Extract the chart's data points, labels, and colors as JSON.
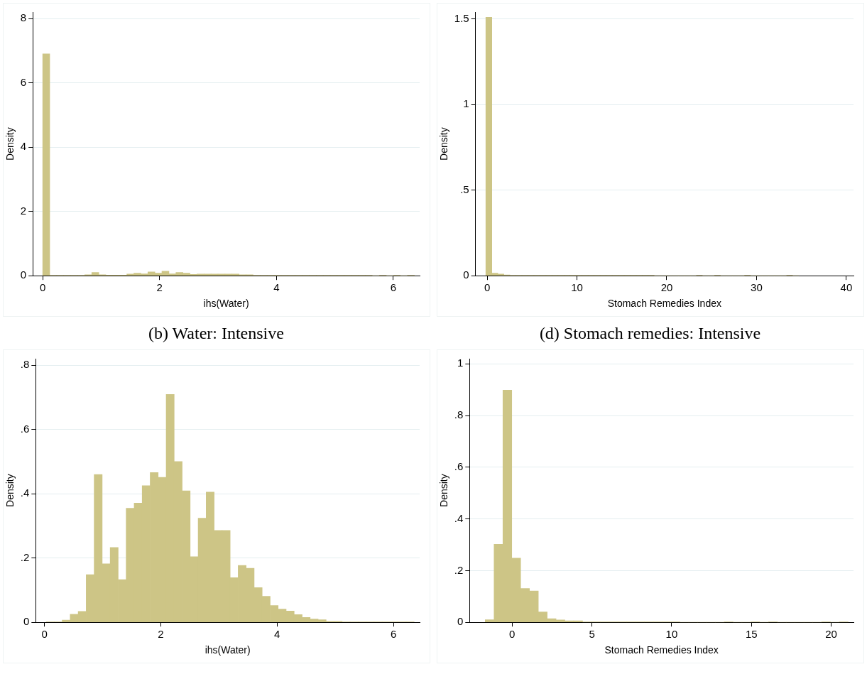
{
  "chart_data": [
    {
      "type": "histogram",
      "xlabel": "ihs(Water)",
      "ylabel": "Density",
      "color": "#cdc586",
      "grid": "y",
      "bins": [
        0,
        0.12,
        0.24,
        0.36,
        0.48,
        0.6,
        0.72,
        0.84,
        0.96,
        1.08,
        1.2,
        1.32,
        1.44,
        1.56,
        1.68,
        1.8,
        1.92,
        2.04,
        2.16,
        2.28,
        2.4,
        2.52,
        2.64,
        2.76,
        2.88,
        3,
        3.12,
        3.24,
        3.36,
        3.48,
        3.6,
        3.72,
        3.84,
        3.96,
        4.08,
        4.2,
        4.32,
        4.44,
        4.56,
        4.68,
        4.8,
        4.92,
        5.04,
        5.16,
        5.28,
        5.4,
        5.52,
        5.64,
        5.76,
        5.88,
        6,
        6.12,
        6.24,
        6.36
      ],
      "values": [
        6.9,
        0.01,
        0.01,
        0.01,
        0.01,
        0.01,
        0.03,
        0.1,
        0.03,
        0.02,
        0.02,
        0.02,
        0.05,
        0.08,
        0.06,
        0.12,
        0.08,
        0.14,
        0.06,
        0.1,
        0.08,
        0.04,
        0.05,
        0.05,
        0.05,
        0.05,
        0.05,
        0.05,
        0.03,
        0.03,
        0.01,
        0.01,
        0.01,
        0.01,
        0.01,
        0.01,
        0.01,
        0.01,
        0.01,
        0.01,
        0.01,
        0.01,
        0.01,
        0.01,
        0.01,
        0.01,
        0.01,
        0,
        0.01,
        0,
        0.01,
        0,
        0.01
      ],
      "xlim": [
        -0.17,
        6.45
      ],
      "ylim": [
        0,
        8.2
      ],
      "xticks": [
        0,
        2,
        4,
        6
      ],
      "yticks": [
        0,
        2,
        4,
        6,
        8
      ]
    },
    {
      "type": "histogram",
      "xlabel": "Stomach Remedies Index",
      "ylabel": "Density",
      "color": "#cdc586",
      "grid": "y",
      "bins": [
        -0.15,
        0.52,
        1.19,
        1.86,
        2.53,
        3.2,
        3.87,
        4.54,
        5.21,
        5.88,
        6.55,
        7.22,
        7.89,
        8.56,
        9.23,
        9.9,
        10.57,
        11.24,
        11.91,
        12.58,
        13.25,
        13.92,
        14.59,
        15.26,
        15.93,
        16.6,
        17.27,
        17.94,
        18.61,
        19.28,
        19.95,
        20.62,
        21.29,
        21.96,
        22.63,
        23.3,
        23.97,
        24.64,
        25.31,
        25.98,
        26.65,
        27.32,
        27.99,
        28.66,
        29.33,
        30,
        30.67,
        31.34,
        32.01,
        32.68,
        33.35,
        34.02,
        34.69
      ],
      "values": [
        1.51,
        0.015,
        0.01,
        0.005,
        0.002,
        0.002,
        0.002,
        0.002,
        0.002,
        0.002,
        0.002,
        0.002,
        0.002,
        0.002,
        0.002,
        0.002,
        0.002,
        0.002,
        0.002,
        0.002,
        0.002,
        0.002,
        0.002,
        0.002,
        0.002,
        0.002,
        0.002,
        0.002,
        0,
        0,
        0,
        0,
        0,
        0,
        0,
        0.002,
        0,
        0,
        0.002,
        0,
        0,
        0,
        0,
        0.002,
        0,
        0,
        0,
        0,
        0,
        0,
        0.002,
        0
      ],
      "xlim": [
        -1.3,
        40.8
      ],
      "ylim": [
        0,
        1.54
      ],
      "xticks": [
        0,
        10,
        20,
        30,
        40
      ],
      "yticks": [
        0,
        {
          "value": 0.5,
          "label": ".5"
        },
        1,
        1.5
      ]
    },
    {
      "type": "histogram",
      "title": "(b) Water: Intensive",
      "xlabel": "ihs(Water)",
      "ylabel": "Density",
      "color": "#cdc586",
      "grid": "y",
      "bins": [
        0.03,
        0.1675,
        0.305,
        0.4425,
        0.58,
        0.7175,
        0.855,
        0.9925,
        1.13,
        1.2675,
        1.405,
        1.5425,
        1.68,
        1.8175,
        1.955,
        2.0925,
        2.23,
        2.3675,
        2.505,
        2.6425,
        2.78,
        2.9175,
        3.055,
        3.1925,
        3.33,
        3.4675,
        3.605,
        3.7425,
        3.88,
        4.0175,
        4.155,
        4.2925,
        4.43,
        4.5675,
        4.705,
        4.8425,
        4.98,
        5.1175,
        5.255,
        5.3925,
        5.53,
        5.6675,
        5.805,
        5.9425,
        6.08,
        6.2175,
        6.355
      ],
      "values": [
        0.001,
        0.001,
        0.007,
        0.025,
        0.034,
        0.148,
        0.46,
        0.182,
        0.233,
        0.133,
        0.355,
        0.371,
        0.425,
        0.466,
        0.451,
        0.709,
        0.5,
        0.409,
        0.204,
        0.324,
        0.405,
        0.286,
        0.286,
        0.139,
        0.177,
        0.168,
        0.108,
        0.081,
        0.052,
        0.041,
        0.035,
        0.024,
        0.015,
        0.01,
        0.008,
        0.003,
        0.003,
        0.001,
        0.001,
        0.001,
        0.001,
        0.001,
        0.001,
        0.001,
        0.001,
        0.001
      ],
      "xlim": [
        -0.15,
        6.45
      ],
      "ylim": [
        0,
        0.82
      ],
      "xticks": [
        0,
        2,
        4,
        6
      ],
      "yticks": [
        0,
        {
          "value": 0.2,
          "label": ".2"
        },
        {
          "value": 0.4,
          "label": ".4"
        },
        {
          "value": 0.6,
          "label": ".6"
        },
        {
          "value": 0.8,
          "label": ".8"
        }
      ]
    },
    {
      "type": "histogram",
      "title": "(d) Stomach remedies: Intensive",
      "xlabel": "Stomach Remedies Index",
      "ylabel": "Density",
      "color": "#cdc586",
      "grid": "y",
      "bins": [
        -1.69,
        -1.135,
        -0.58,
        -0.025,
        0.53,
        1.085,
        1.64,
        2.195,
        2.75,
        3.305,
        3.86,
        4.415,
        4.97,
        5.525,
        6.08,
        6.635,
        7.19,
        7.745,
        8.3,
        8.855,
        9.41,
        9.965,
        10.52,
        11.075,
        11.63,
        12.185,
        12.74,
        13.295,
        13.85,
        14.405,
        14.96,
        15.515,
        16.07,
        16.625,
        17.18,
        17.735,
        18.29,
        18.845,
        19.4,
        19.955,
        20.51,
        21.065
      ],
      "values": [
        0.01,
        0.302,
        0.898,
        0.248,
        0.131,
        0.121,
        0.04,
        0.014,
        0.009,
        0.006,
        0.006,
        0.001,
        0.001,
        0.001,
        0.001,
        0.001,
        0.001,
        0.001,
        0.001,
        0.001,
        0.001,
        0.001,
        0,
        0,
        0,
        0,
        0,
        0.001,
        0,
        0,
        0.001,
        0,
        0.001,
        0,
        0,
        0,
        0,
        0,
        0.001,
        0,
        0.001
      ],
      "xlim": [
        -2.67,
        21.4
      ],
      "ylim": [
        0,
        1.02
      ],
      "xticks": [
        0,
        5,
        10,
        15,
        20
      ],
      "yticks": [
        0,
        {
          "value": 0.2,
          "label": ".2"
        },
        {
          "value": 0.4,
          "label": ".4"
        },
        {
          "value": 0.6,
          "label": ".6"
        },
        {
          "value": 0.8,
          "label": ".8"
        },
        1
      ]
    }
  ]
}
